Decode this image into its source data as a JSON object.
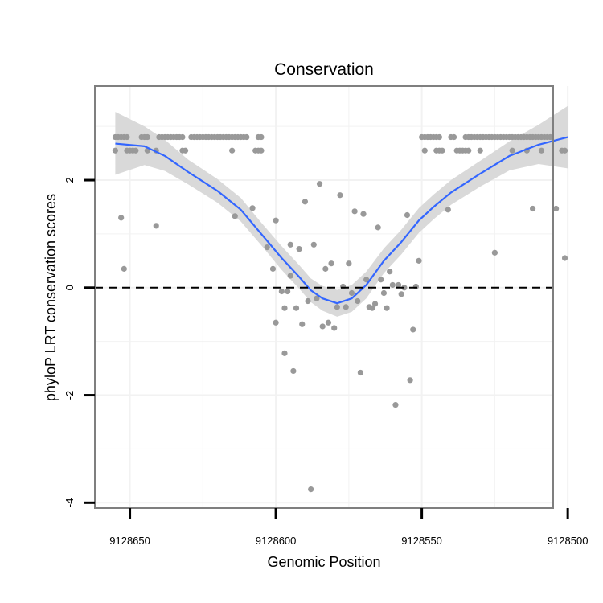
{
  "chart_data": {
    "type": "scatter",
    "title": "Conservation",
    "xlabel": "Genomic Position",
    "ylabel": "phyloP LRT conservation scores",
    "x_reversed": true,
    "xlim": [
      9128505,
      9128662
    ],
    "ylim": [
      -4.1,
      3.75
    ],
    "x_ticks": [
      9128650,
      9128600,
      9128550,
      9128500
    ],
    "x_tick_labels": [
      "9128650",
      "9128600",
      "9128550",
      "9128500"
    ],
    "y_ticks": [
      -4,
      -2,
      0,
      2
    ],
    "y_tick_labels": [
      "-4",
      "-2",
      "0",
      "2"
    ],
    "reference_line": {
      "y": 0,
      "style": "dashed"
    },
    "grid": true,
    "colors": {
      "points": "#999999",
      "smooth_line": "#3366FF",
      "confidence_band": "#D9D9D9",
      "reference_line": "#000000",
      "panel_border": "#7f7f7f",
      "grid": "#f2f2f2"
    },
    "points": [
      [
        9128655,
        2.8
      ],
      [
        9128654,
        2.8
      ],
      [
        9128653,
        2.8
      ],
      [
        9128652,
        2.8
      ],
      [
        9128651,
        2.8
      ],
      [
        9128646,
        2.8
      ],
      [
        9128645,
        2.8
      ],
      [
        9128644,
        2.8
      ],
      [
        9128640,
        2.8
      ],
      [
        9128639,
        2.8
      ],
      [
        9128638,
        2.8
      ],
      [
        9128637,
        2.8
      ],
      [
        9128636,
        2.8
      ],
      [
        9128635,
        2.8
      ],
      [
        9128634,
        2.8
      ],
      [
        9128633,
        2.8
      ],
      [
        9128632,
        2.8
      ],
      [
        9128629,
        2.8
      ],
      [
        9128628,
        2.8
      ],
      [
        9128627,
        2.8
      ],
      [
        9128626,
        2.8
      ],
      [
        9128625,
        2.8
      ],
      [
        9128624,
        2.8
      ],
      [
        9128623,
        2.8
      ],
      [
        9128622,
        2.8
      ],
      [
        9128621,
        2.8
      ],
      [
        9128620,
        2.8
      ],
      [
        9128619,
        2.8
      ],
      [
        9128618,
        2.8
      ],
      [
        9128617,
        2.8
      ],
      [
        9128616,
        2.8
      ],
      [
        9128615,
        2.8
      ],
      [
        9128614,
        2.8
      ],
      [
        9128613,
        2.8
      ],
      [
        9128612,
        2.8
      ],
      [
        9128611,
        2.8
      ],
      [
        9128610,
        2.8
      ],
      [
        9128606,
        2.8
      ],
      [
        9128605,
        2.8
      ],
      [
        9128605,
        2.55
      ],
      [
        9128606,
        2.55
      ],
      [
        9128607,
        2.55
      ],
      [
        9128615,
        2.55
      ],
      [
        9128631,
        2.55
      ],
      [
        9128632,
        2.55
      ],
      [
        9128641,
        2.55
      ],
      [
        9128644,
        2.55
      ],
      [
        9128648,
        2.55
      ],
      [
        9128649,
        2.55
      ],
      [
        9128650,
        2.55
      ],
      [
        9128651,
        2.55
      ],
      [
        9128655,
        2.55
      ],
      [
        9128653,
        1.3
      ],
      [
        9128641,
        1.15
      ],
      [
        9128652,
        0.35
      ],
      [
        9128614,
        1.33
      ],
      [
        9128608,
        1.48
      ],
      [
        9128600,
        1.25
      ],
      [
        9128603,
        0.75
      ],
      [
        9128601,
        0.35
      ],
      [
        9128600,
        -0.65
      ],
      [
        9128597,
        -1.22
      ],
      [
        9128598,
        -0.07
      ],
      [
        9128597,
        -0.38
      ],
      [
        9128596,
        -0.07
      ],
      [
        9128595,
        0.22
      ],
      [
        9128595,
        0.8
      ],
      [
        9128593,
        -0.38
      ],
      [
        9128594,
        -1.55
      ],
      [
        9128592,
        0.72
      ],
      [
        9128591,
        -0.68
      ],
      [
        9128590,
        1.6
      ],
      [
        9128589,
        -0.25
      ],
      [
        9128588,
        -3.75
      ],
      [
        9128587,
        0.8
      ],
      [
        9128586,
        -0.2
      ],
      [
        9128585,
        1.93
      ],
      [
        9128584,
        -0.72
      ],
      [
        9128583,
        0.35
      ],
      [
        9128582,
        -0.65
      ],
      [
        9128581,
        0.45
      ],
      [
        9128580,
        -0.75
      ],
      [
        9128579,
        -0.36
      ],
      [
        9128578,
        1.72
      ],
      [
        9128577,
        0.02
      ],
      [
        9128576,
        -0.36
      ],
      [
        9128575,
        0.45
      ],
      [
        9128574,
        -0.1
      ],
      [
        9128573,
        1.42
      ],
      [
        9128572,
        -0.25
      ],
      [
        9128571,
        -1.58
      ],
      [
        9128570,
        1.37
      ],
      [
        9128569,
        0.15
      ],
      [
        9128568,
        -0.36
      ],
      [
        9128567,
        -0.38
      ],
      [
        9128566,
        -0.3
      ],
      [
        9128565,
        1.12
      ],
      [
        9128564,
        0.15
      ],
      [
        9128563,
        -0.1
      ],
      [
        9128562,
        -0.38
      ],
      [
        9128561,
        0.3
      ],
      [
        9128560,
        0.05
      ],
      [
        9128559,
        -2.18
      ],
      [
        9128558,
        0.05
      ],
      [
        9128557,
        -0.12
      ],
      [
        9128556,
        0.0
      ],
      [
        9128555,
        1.35
      ],
      [
        9128554,
        -1.72
      ],
      [
        9128553,
        -0.78
      ],
      [
        9128552,
        0.02
      ],
      [
        9128551,
        0.5
      ],
      [
        9128550,
        2.8
      ],
      [
        9128549,
        2.8
      ],
      [
        9128548,
        2.8
      ],
      [
        9128547,
        2.8
      ],
      [
        9128546,
        2.8
      ],
      [
        9128545,
        2.8
      ],
      [
        9128544,
        2.8
      ],
      [
        9128540,
        2.8
      ],
      [
        9128539,
        2.8
      ],
      [
        9128535,
        2.8
      ],
      [
        9128534,
        2.8
      ],
      [
        9128533,
        2.8
      ],
      [
        9128532,
        2.8
      ],
      [
        9128531,
        2.8
      ],
      [
        9128530,
        2.8
      ],
      [
        9128529,
        2.8
      ],
      [
        9128528,
        2.8
      ],
      [
        9128527,
        2.8
      ],
      [
        9128526,
        2.8
      ],
      [
        9128525,
        2.8
      ],
      [
        9128524,
        2.8
      ],
      [
        9128523,
        2.8
      ],
      [
        9128522,
        2.8
      ],
      [
        9128521,
        2.8
      ],
      [
        9128520,
        2.8
      ],
      [
        9128519,
        2.8
      ],
      [
        9128518,
        2.8
      ],
      [
        9128517,
        2.8
      ],
      [
        9128516,
        2.8
      ],
      [
        9128515,
        2.8
      ],
      [
        9128514,
        2.8
      ],
      [
        9128513,
        2.8
      ],
      [
        9128512,
        2.8
      ],
      [
        9128511,
        2.8
      ],
      [
        9128510,
        2.8
      ],
      [
        9128509,
        2.8
      ],
      [
        9128508,
        2.8
      ],
      [
        9128507,
        2.8
      ],
      [
        9128506,
        2.8
      ],
      [
        9128549,
        2.55
      ],
      [
        9128545,
        2.55
      ],
      [
        9128544,
        2.55
      ],
      [
        9128543,
        2.55
      ],
      [
        9128538,
        2.55
      ],
      [
        9128537,
        2.55
      ],
      [
        9128536,
        2.55
      ],
      [
        9128535,
        2.55
      ],
      [
        9128534,
        2.55
      ],
      [
        9128530,
        2.55
      ],
      [
        9128519,
        2.55
      ],
      [
        9128514,
        2.55
      ],
      [
        9128509,
        2.55
      ],
      [
        9128502,
        2.55
      ],
      [
        9128501,
        2.55
      ],
      [
        9128541,
        1.45
      ],
      [
        9128525,
        0.65
      ],
      [
        9128512,
        1.47
      ],
      [
        9128504,
        1.47
      ],
      [
        9128501,
        0.55
      ]
    ],
    "smooth_line": [
      [
        9128655,
        2.68
      ],
      [
        9128645,
        2.63
      ],
      [
        9128638,
        2.45
      ],
      [
        9128630,
        2.15
      ],
      [
        9128620,
        1.8
      ],
      [
        9128612,
        1.45
      ],
      [
        9128605,
        1.0
      ],
      [
        9128598,
        0.55
      ],
      [
        9128592,
        0.2
      ],
      [
        9128588,
        -0.05
      ],
      [
        9128584,
        -0.2
      ],
      [
        9128579,
        -0.29
      ],
      [
        9128574,
        -0.2
      ],
      [
        9128569,
        0.05
      ],
      [
        9128563,
        0.5
      ],
      [
        9128557,
        0.85
      ],
      [
        9128551,
        1.25
      ],
      [
        9128546,
        1.5
      ],
      [
        9128540,
        1.77
      ],
      [
        9128530,
        2.12
      ],
      [
        9128520,
        2.45
      ],
      [
        9128510,
        2.66
      ],
      [
        9128500,
        2.8
      ]
    ],
    "confidence_band": {
      "upper": [
        [
          9128655,
          3.27
        ],
        [
          9128645,
          3.0
        ],
        [
          9128638,
          2.75
        ],
        [
          9128630,
          2.38
        ],
        [
          9128620,
          2.02
        ],
        [
          9128612,
          1.67
        ],
        [
          9128605,
          1.21
        ],
        [
          9128598,
          0.77
        ],
        [
          9128592,
          0.42
        ],
        [
          9128588,
          0.17
        ],
        [
          9128584,
          0.03
        ],
        [
          9128579,
          -0.04
        ],
        [
          9128574,
          0.05
        ],
        [
          9128569,
          0.3
        ],
        [
          9128563,
          0.73
        ],
        [
          9128557,
          1.08
        ],
        [
          9128551,
          1.48
        ],
        [
          9128546,
          1.73
        ],
        [
          9128540,
          2.0
        ],
        [
          9128530,
          2.36
        ],
        [
          9128520,
          2.72
        ],
        [
          9128510,
          3.03
        ],
        [
          9128500,
          3.38
        ]
      ],
      "lower": [
        [
          9128655,
          2.1
        ],
        [
          9128645,
          2.28
        ],
        [
          9128638,
          2.17
        ],
        [
          9128630,
          1.92
        ],
        [
          9128620,
          1.58
        ],
        [
          9128612,
          1.23
        ],
        [
          9128605,
          0.79
        ],
        [
          9128598,
          0.33
        ],
        [
          9128592,
          -0.02
        ],
        [
          9128588,
          -0.27
        ],
        [
          9128584,
          -0.43
        ],
        [
          9128579,
          -0.54
        ],
        [
          9128574,
          -0.45
        ],
        [
          9128569,
          -0.2
        ],
        [
          9128563,
          0.27
        ],
        [
          9128557,
          0.62
        ],
        [
          9128551,
          1.02
        ],
        [
          9128546,
          1.27
        ],
        [
          9128540,
          1.54
        ],
        [
          9128530,
          1.88
        ],
        [
          9128520,
          2.18
        ],
        [
          9128510,
          2.3
        ],
        [
          9128500,
          2.22
        ]
      ]
    }
  }
}
